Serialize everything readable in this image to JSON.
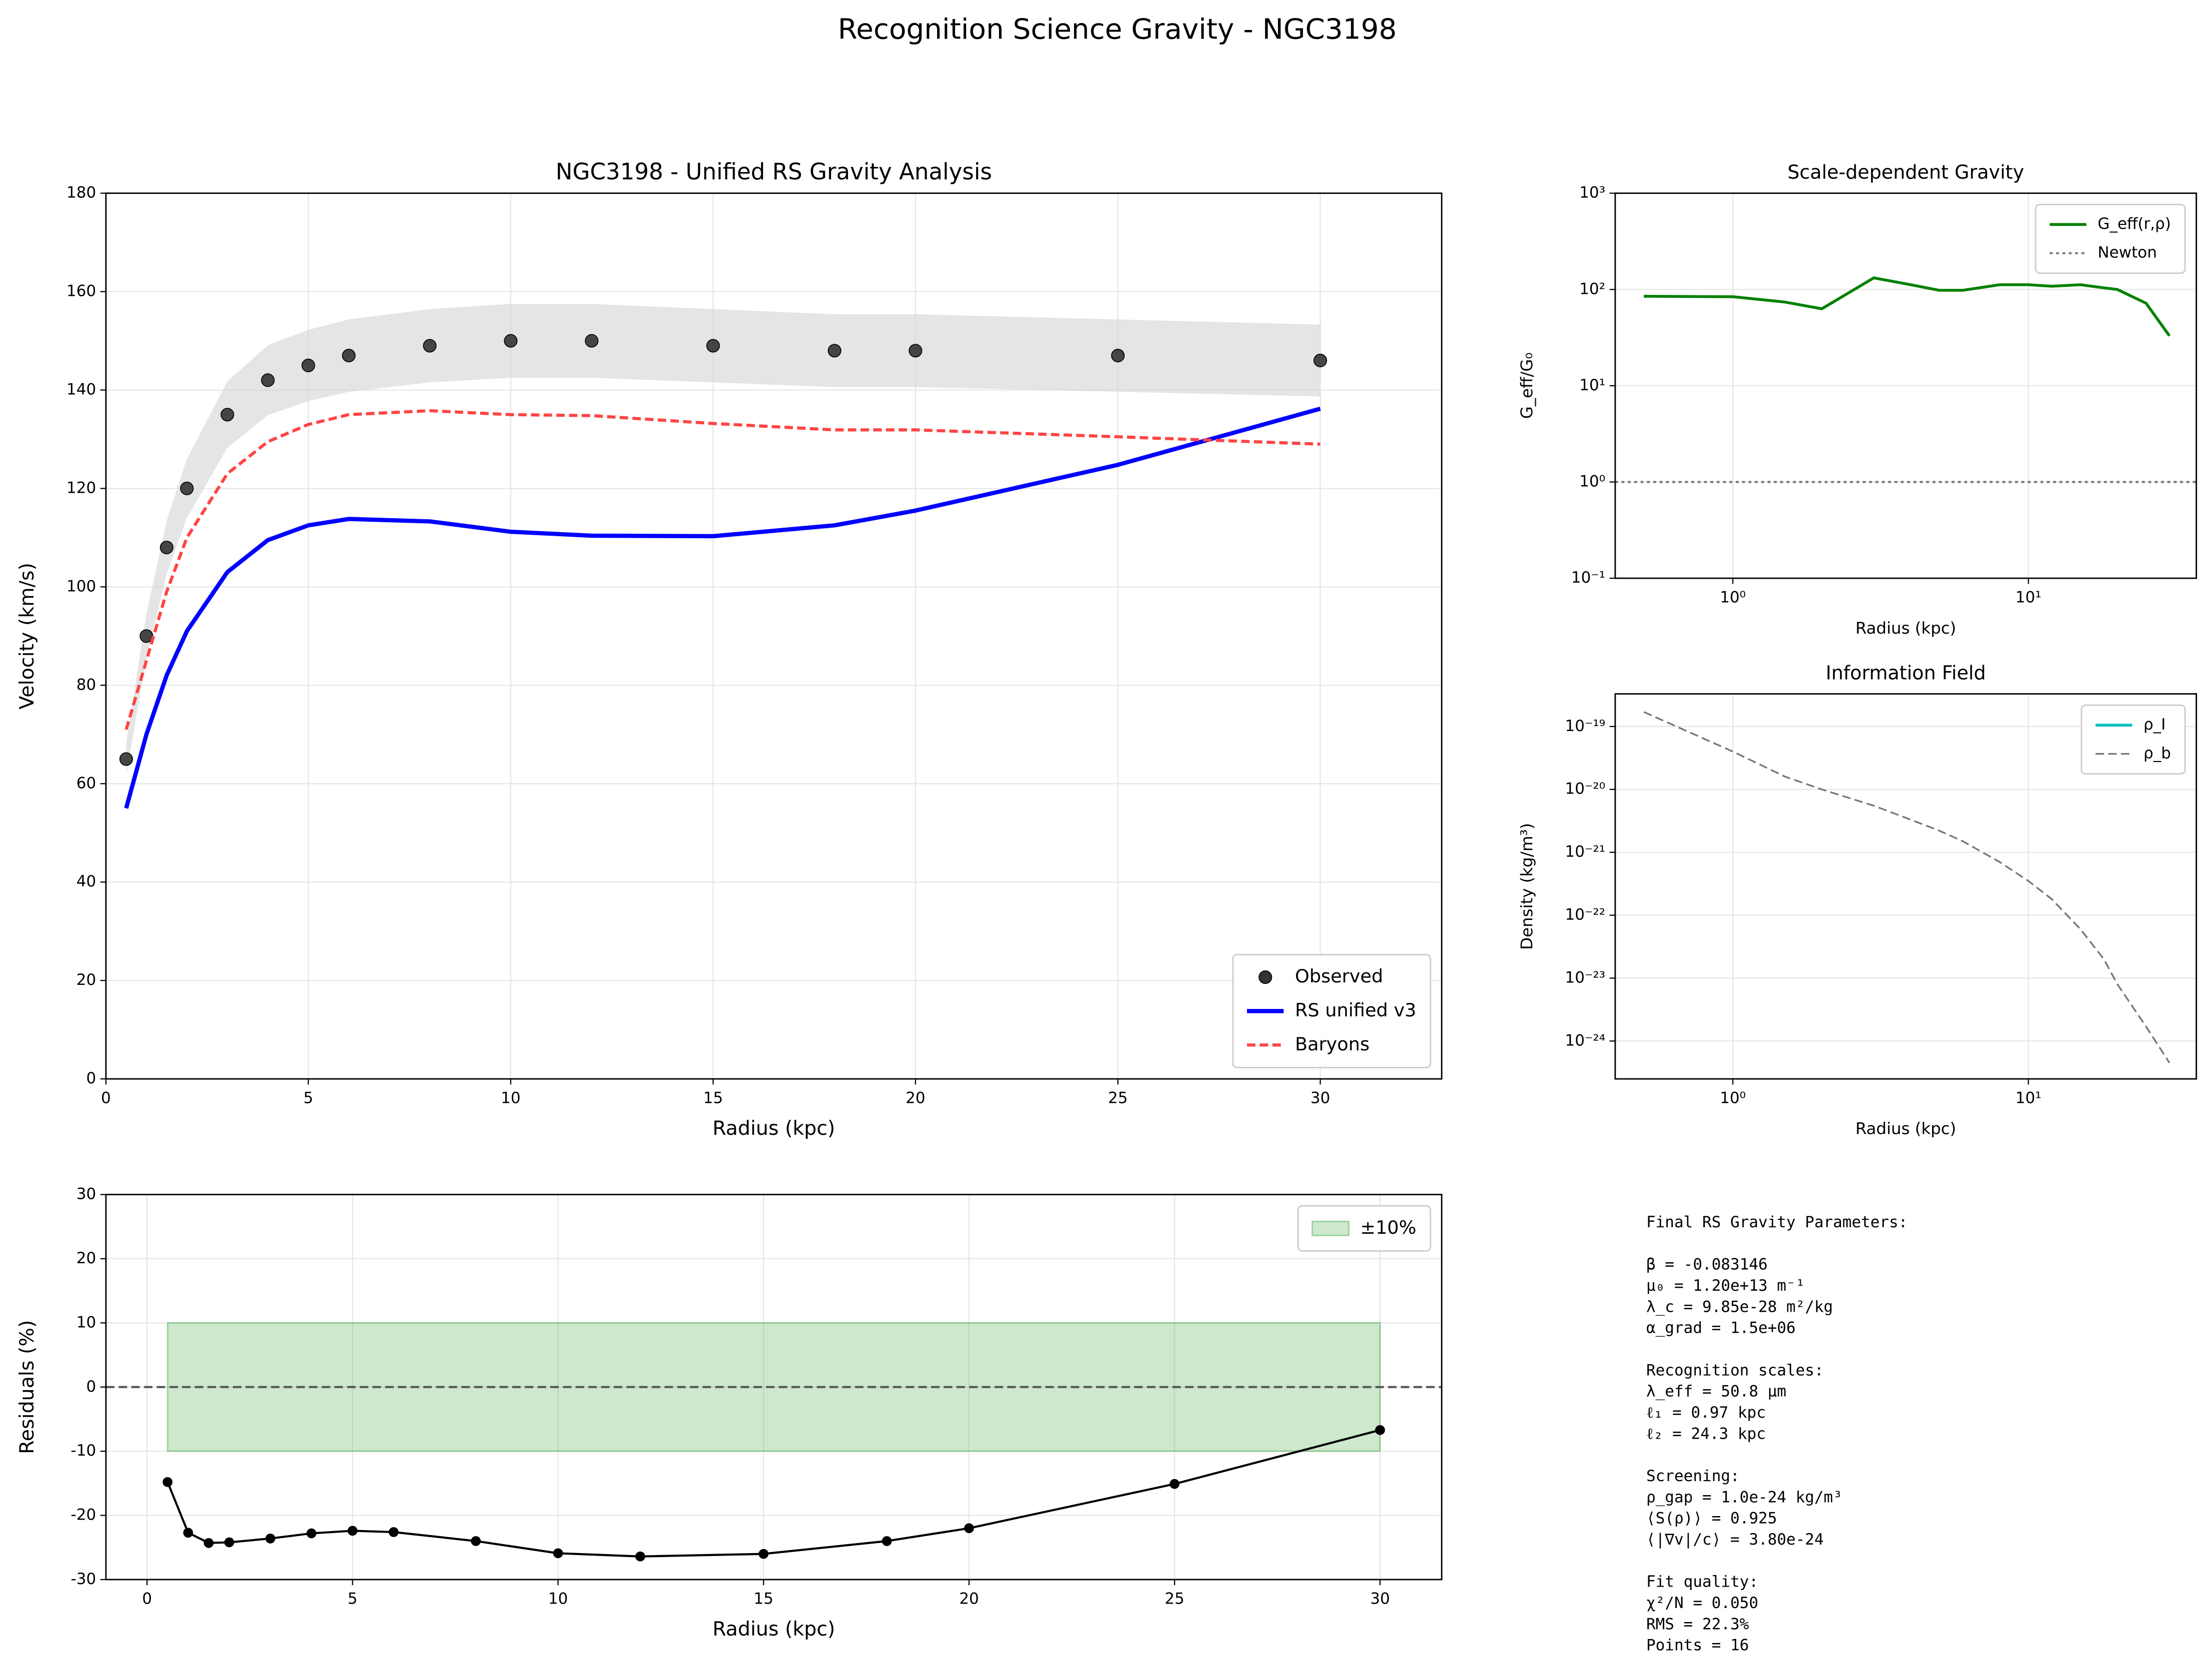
{
  "suptitle": "Recognition Science Gravity - NGC3198",
  "chart_data": [
    {
      "type": "line",
      "title": "NGC3198 - Unified RS Gravity Analysis",
      "xlabel": "Radius (kpc)",
      "ylabel": "Velocity (km/s)",
      "x": [
        0.5,
        1,
        1.5,
        2,
        3,
        4,
        5,
        6,
        8,
        10,
        12,
        15,
        18,
        20,
        25,
        30
      ],
      "xlim": [
        0,
        33
      ],
      "ylim": [
        0,
        180
      ],
      "xticks": [
        0,
        5,
        10,
        15,
        20,
        25,
        30
      ],
      "yticks": [
        0,
        20,
        40,
        60,
        80,
        100,
        120,
        140,
        160,
        180
      ],
      "grid": true,
      "legend": "lower right",
      "band": {
        "color": "#d3d3d3",
        "upper": [
          68.25,
          94.5,
          113.4,
          126,
          141.75,
          149.1,
          152.25,
          154.35,
          156.45,
          157.5,
          157.5,
          156.45,
          155.4,
          155.4,
          154.35,
          153.3
        ],
        "lower": [
          61.75,
          85.5,
          102.6,
          114,
          128.25,
          134.9,
          137.75,
          139.65,
          141.55,
          142.5,
          142.5,
          141.55,
          140.6,
          140.6,
          139.65,
          138.7
        ]
      },
      "series": [
        {
          "name": "Observed",
          "color": "#333333",
          "style": "scatter",
          "values": [
            65,
            90,
            108,
            120,
            135,
            142,
            145,
            147,
            149,
            150,
            150,
            149,
            148,
            148,
            147,
            146
          ]
        },
        {
          "name": "RS unified v3",
          "color": "#0000ff",
          "style": "line",
          "width": 3,
          "values": [
            55,
            70,
            82,
            91,
            103,
            109.5,
            112.5,
            113.8,
            113.3,
            111.2,
            110.4,
            110.3,
            112.5,
            115.5,
            124.8,
            136.2
          ]
        },
        {
          "name": "Baryons",
          "color": "#ff4444",
          "style": "dashed",
          "width": 2.2,
          "values": [
            71,
            85,
            99,
            110,
            123,
            129.5,
            133,
            135,
            135.8,
            135,
            134.8,
            133.2,
            131.9,
            131.9,
            130.5,
            129
          ]
        }
      ]
    },
    {
      "type": "line",
      "xlabel": "Radius (kpc)",
      "ylabel": "Residuals (%)",
      "x": [
        0.5,
        1,
        1.5,
        2,
        3,
        4,
        5,
        6,
        8,
        10,
        12,
        15,
        18,
        20,
        25,
        30
      ],
      "xlim": [
        -1,
        31.5
      ],
      "ylim": [
        -30,
        30
      ],
      "xticks": [
        0,
        5,
        10,
        15,
        20,
        25,
        30
      ],
      "yticks": [
        -30,
        -20,
        -10,
        0,
        10,
        20,
        30
      ],
      "grid": true,
      "legend": "upper right",
      "band": {
        "name": "±10%",
        "color": "#2ca02c",
        "x": [
          0.5,
          30
        ],
        "y": [
          -10,
          10
        ]
      },
      "series": [
        {
          "color": "#555555",
          "style": "dashed",
          "hline": 0
        },
        {
          "color": "#000000",
          "style": "line+markers",
          "width": 1.5,
          "values": [
            -14.8,
            -22.7,
            -24.3,
            -24.2,
            -23.6,
            -22.8,
            -22.4,
            -22.6,
            -24,
            -25.9,
            -26.4,
            -26,
            -24,
            -22,
            -15.1,
            -6.7
          ]
        }
      ]
    },
    {
      "type": "line",
      "title": "Scale-dependent Gravity",
      "xlabel": "Radius (kpc)",
      "ylabel": "G_eff/G₀",
      "xscale": "log",
      "yscale": "log",
      "x": [
        0.5,
        1,
        1.5,
        2,
        3,
        4,
        5,
        6,
        8,
        10,
        12,
        15,
        18,
        20,
        25,
        30
      ],
      "xlim": [
        0.4,
        37
      ],
      "ylim": [
        0.1,
        1000
      ],
      "xticks": [
        {
          "value": 1,
          "label": "10⁰"
        },
        {
          "value": 10,
          "label": "10¹"
        }
      ],
      "yticks": [
        {
          "value": 0.1,
          "label": "10⁻¹"
        },
        {
          "value": 1,
          "label": "10⁰"
        },
        {
          "value": 10,
          "label": "10¹"
        },
        {
          "value": 100,
          "label": "10²"
        },
        {
          "value": 1000,
          "label": "10³"
        }
      ],
      "grid": true,
      "legend": "upper right",
      "series": [
        {
          "name": "G_eff(r,ρ)",
          "color": "#008000",
          "style": "line",
          "width": 2,
          "values": [
            85,
            84,
            74,
            63,
            132,
            112,
            98,
            98,
            112,
            112,
            108,
            112,
            104,
            100,
            72,
            33
          ]
        },
        {
          "name": "Newton",
          "color": "#777777",
          "style": "dotted",
          "hline": 1
        }
      ]
    },
    {
      "type": "line",
      "title": "Information Field",
      "xlabel": "Radius (kpc)",
      "ylabel": "Density (kg/m³)",
      "xscale": "log",
      "yscale": "log",
      "x": [
        0.5,
        1,
        1.5,
        2,
        3,
        4,
        5,
        6,
        8,
        10,
        12,
        15,
        18,
        20,
        25,
        30
      ],
      "xlim": [
        0.4,
        37
      ],
      "ylim": [
        2.5e-25,
        3.3e-19
      ],
      "xticks": [
        {
          "value": 1,
          "label": "10⁰"
        },
        {
          "value": 10,
          "label": "10¹"
        }
      ],
      "yticks": [
        {
          "value": 1e-24,
          "label": "10⁻²⁴"
        },
        {
          "value": 1e-23,
          "label": "10⁻²³"
        },
        {
          "value": 1e-22,
          "label": "10⁻²²"
        },
        {
          "value": 1e-21,
          "label": "10⁻²¹"
        },
        {
          "value": 1e-20,
          "label": "10⁻²⁰"
        },
        {
          "value": 1e-19,
          "label": "10⁻¹⁹"
        }
      ],
      "grid": true,
      "legend": "upper right",
      "series": [
        {
          "name": "ρ_I",
          "color": "#00bfbf",
          "style": "line",
          "width": 2,
          "values": [
            null,
            null,
            null,
            null,
            null,
            null,
            null,
            null,
            null,
            null,
            null,
            null,
            null,
            null,
            null,
            null
          ]
        },
        {
          "name": "ρ_b",
          "color": "#777777",
          "style": "dashed",
          "width": 1.2,
          "values": [
            1.7e-19,
            4e-20,
            1.6e-20,
            1e-20,
            5.5e-21,
            3.3e-21,
            2.2e-21,
            1.5e-21,
            7e-22,
            3.5e-22,
            1.8e-22,
            6e-23,
            2e-23,
            8e-24,
            1.7e-24,
            4.5e-25
          ]
        }
      ]
    }
  ],
  "text_panel": {
    "blocks": [
      [
        "Final RS Gravity Parameters:"
      ],
      [
        "β = -0.083146",
        "μ₀ = 1.20e+13 m⁻¹",
        "λ_c = 9.85e-28 m²/kg",
        "α_grad = 1.5e+06"
      ],
      [
        "Recognition scales:",
        "λ_eff = 50.8 μm",
        "ℓ₁ = 0.97 kpc",
        "ℓ₂ = 24.3 kpc"
      ],
      [
        "Screening:",
        "ρ_gap = 1.0e-24 kg/m³",
        "⟨S(ρ)⟩ = 0.925",
        "⟨|∇v|/c⟩ = 3.80e-24"
      ],
      [
        "Fit quality:",
        "χ²/N = 0.050",
        "RMS = 22.3%",
        "Points = 16"
      ]
    ]
  }
}
